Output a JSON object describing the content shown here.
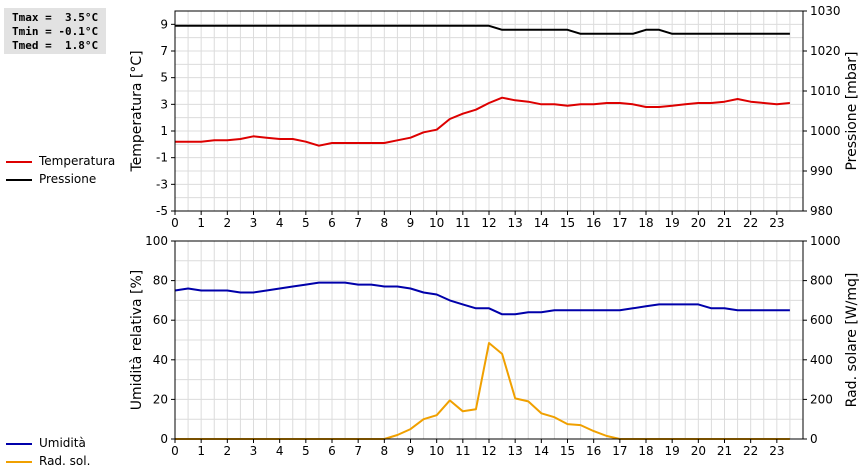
{
  "stats": {
    "tmax": "Tmax =  3.5°C",
    "tmin": "Tmin = -0.1°C",
    "tmed": "Tmed =  1.8°C"
  },
  "legend_top": [
    {
      "label": "Temperatura",
      "color": "#dd0000"
    },
    {
      "label": "Pressione",
      "color": "#000000"
    }
  ],
  "legend_bottom": [
    {
      "label": "Umidità",
      "color": "#0000aa"
    },
    {
      "label": "Rad. sol.",
      "color": "#f0a000"
    }
  ],
  "chart_data": [
    {
      "type": "line",
      "xlim": [
        0,
        24
      ],
      "x_ticks": [
        0,
        1,
        2,
        3,
        4,
        5,
        6,
        7,
        8,
        9,
        10,
        11,
        12,
        13,
        14,
        15,
        16,
        17,
        18,
        19,
        20,
        21,
        22,
        23
      ],
      "ylabel": "Temperatura [°C]",
      "ylim": [
        -5,
        10
      ],
      "y_ticks": [
        -5,
        -3,
        -1,
        1,
        3,
        5,
        7,
        9
      ],
      "y2label": "Pressione [mbar]",
      "y2lim": [
        980,
        1030
      ],
      "y2_ticks": [
        980,
        990,
        1000,
        1010,
        1020,
        1030
      ],
      "grid": true,
      "series": [
        {
          "name": "Temperatura",
          "axis": "left",
          "color": "#dd0000",
          "x": [
            0,
            0.5,
            1,
            1.5,
            2,
            2.5,
            3,
            3.5,
            4,
            4.5,
            5,
            5.5,
            6,
            6.5,
            7,
            7.5,
            8,
            8.5,
            9,
            9.5,
            10,
            10.5,
            11,
            11.5,
            12,
            12.5,
            13,
            13.5,
            14,
            14.5,
            15,
            15.5,
            16,
            16.5,
            17,
            17.5,
            18,
            18.5,
            19,
            19.5,
            20,
            20.5,
            21,
            21.5,
            22,
            22.5,
            23,
            23.5
          ],
          "values": [
            0.2,
            0.2,
            0.2,
            0.3,
            0.3,
            0.4,
            0.6,
            0.5,
            0.4,
            0.4,
            0.2,
            -0.1,
            0.1,
            0.1,
            0.1,
            0.1,
            0.1,
            0.3,
            0.5,
            0.9,
            1.1,
            1.9,
            2.3,
            2.6,
            3.1,
            3.5,
            3.3,
            3.2,
            3.0,
            3.0,
            2.9,
            3.0,
            3.0,
            3.1,
            3.1,
            3.0,
            2.8,
            2.8,
            2.9,
            3.0,
            3.1,
            3.1,
            3.2,
            3.4,
            3.2,
            3.1,
            3.0,
            3.1
          ]
        },
        {
          "name": "Pressione",
          "axis": "right",
          "color": "#000000",
          "x": [
            0,
            12,
            12.5,
            15,
            15.5,
            16,
            17.5,
            18,
            18.5,
            19,
            23.5
          ],
          "values": [
            1026.3,
            1026.3,
            1025.3,
            1025.3,
            1024.3,
            1024.3,
            1024.3,
            1025.3,
            1025.3,
            1024.3,
            1024.3
          ]
        }
      ]
    },
    {
      "type": "line",
      "xlim": [
        0,
        24
      ],
      "x_ticks": [
        0,
        1,
        2,
        3,
        4,
        5,
        6,
        7,
        8,
        9,
        10,
        11,
        12,
        13,
        14,
        15,
        16,
        17,
        18,
        19,
        20,
        21,
        22,
        23
      ],
      "ylabel": "Umidità relativa [%]",
      "ylim": [
        0,
        100
      ],
      "y_ticks": [
        0,
        20,
        40,
        60,
        80,
        100
      ],
      "y2label": "Rad. solare [W/mq]",
      "y2lim": [
        0,
        1000
      ],
      "y2_ticks": [
        0,
        200,
        400,
        600,
        800,
        1000
      ],
      "grid": true,
      "series": [
        {
          "name": "Umidità",
          "axis": "left",
          "color": "#0000aa",
          "x": [
            0,
            0.5,
            1,
            1.5,
            2,
            2.5,
            3,
            3.5,
            4,
            4.5,
            5,
            5.5,
            6,
            6.5,
            7,
            7.5,
            8,
            8.5,
            9,
            9.5,
            10,
            10.5,
            11,
            11.5,
            12,
            12.5,
            13,
            13.5,
            14,
            14.5,
            15,
            15.5,
            16,
            16.5,
            17,
            17.5,
            18,
            18.5,
            19,
            19.5,
            20,
            20.5,
            21,
            21.5,
            22,
            22.5,
            23,
            23.5
          ],
          "values": [
            75,
            76,
            75,
            75,
            75,
            74,
            74,
            75,
            76,
            77,
            78,
            79,
            79,
            79,
            78,
            78,
            77,
            77,
            76,
            74,
            73,
            70,
            68,
            66,
            66,
            63,
            63,
            64,
            64,
            65,
            65,
            65,
            65,
            65,
            65,
            66,
            67,
            68,
            68,
            68,
            68,
            66,
            66,
            65,
            65,
            65,
            65,
            65
          ]
        },
        {
          "name": "Rad. sol.",
          "axis": "right",
          "color": "#f0a000",
          "x": [
            0,
            0.5,
            1,
            1.5,
            2,
            2.5,
            3,
            3.5,
            4,
            4.5,
            5,
            5.5,
            6,
            6.5,
            7,
            7.5,
            8,
            8.5,
            9,
            9.5,
            10,
            10.5,
            11,
            11.5,
            12,
            12.5,
            13,
            13.5,
            14,
            14.5,
            15,
            15.5,
            16,
            16.5,
            17,
            17.5,
            18,
            18.5,
            19,
            19.5,
            20,
            20.5,
            21,
            21.5,
            22,
            22.5,
            23,
            23.5
          ],
          "values": [
            0,
            0,
            0,
            0,
            0,
            0,
            0,
            0,
            0,
            0,
            0,
            0,
            0,
            0,
            0,
            0,
            0,
            20,
            50,
            100,
            120,
            195,
            140,
            150,
            485,
            430,
            205,
            190,
            130,
            110,
            75,
            70,
            40,
            15,
            0,
            0,
            0,
            0,
            0,
            0,
            0,
            0,
            0,
            0,
            0,
            0,
            0,
            0
          ]
        }
      ]
    }
  ]
}
